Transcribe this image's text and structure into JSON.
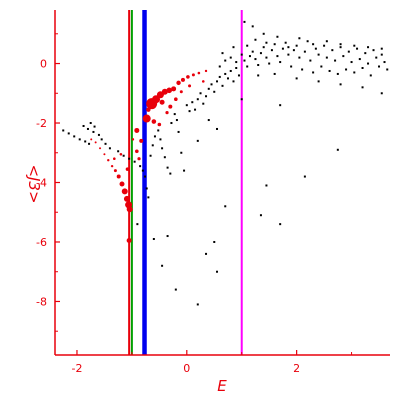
{
  "chart_data": {
    "type": "scatter",
    "xlabel": "E",
    "ylabel": "<J3>",
    "xlim": [
      -2.4,
      3.7
    ],
    "ylim": [
      -9.8,
      1.8
    ],
    "x_ticks": [
      -2,
      0,
      2
    ],
    "x_tick_labels": [
      "-2",
      "0",
      "2"
    ],
    "x_minor_ticks": [
      -1,
      1,
      3
    ],
    "y_ticks": [
      0,
      -2,
      -4,
      -6,
      -8
    ],
    "y_tick_labels": [
      "0",
      "-2",
      "-4",
      "-6",
      "-8"
    ],
    "y_minor_ticks": [
      1,
      -1,
      -3,
      -5,
      -7,
      -9
    ],
    "grid": false,
    "axis_color": "#e8000b",
    "vertical_lines": [
      {
        "x": -1.05,
        "color": "#e8000b"
      },
      {
        "x": -1.0,
        "color": "#00a000"
      },
      {
        "x": -0.77,
        "color": "#0000ee"
      },
      {
        "x": 1.0,
        "color": "#ff00ff"
      }
    ],
    "red_points": {
      "color": "#e8000b",
      "points": [
        [
          -1.74,
          -2.55
        ],
        [
          -1.66,
          -2.65
        ],
        [
          -1.58,
          -2.85
        ],
        [
          -1.5,
          -3.05
        ],
        [
          -1.43,
          -3.25
        ],
        [
          -1.36,
          -3.45
        ],
        [
          -1.3,
          -3.6
        ],
        [
          -1.24,
          -3.8
        ],
        [
          -1.18,
          -4.05
        ],
        [
          -1.13,
          -4.3
        ],
        [
          -1.09,
          -4.55
        ],
        [
          -1.06,
          -4.75
        ],
        [
          -1.04,
          -4.9
        ],
        [
          -1.05,
          -5.95
        ],
        [
          -1.2,
          -3.05
        ],
        [
          -1.32,
          -3.2
        ],
        [
          -1.08,
          -3.55
        ],
        [
          -0.83,
          -2.6
        ],
        [
          -0.91,
          -2.95
        ],
        [
          -0.87,
          -3.2
        ],
        [
          -0.98,
          -2.55
        ],
        [
          -0.91,
          -2.25
        ],
        [
          -0.73,
          -1.85
        ],
        [
          -0.64,
          -1.35
        ],
        [
          -0.56,
          -1.2
        ],
        [
          -0.48,
          -1.05
        ],
        [
          -0.4,
          -0.95
        ],
        [
          -0.32,
          -0.9
        ],
        [
          -0.24,
          -0.85
        ],
        [
          -0.15,
          -0.65
        ],
        [
          -0.07,
          -0.55
        ],
        [
          0.02,
          -0.45
        ],
        [
          0.12,
          -0.38
        ],
        [
          0.22,
          -0.32
        ],
        [
          0.35,
          -0.25
        ],
        [
          -0.45,
          -1.3
        ],
        [
          -0.3,
          -1.45
        ],
        [
          -0.2,
          -1.2
        ],
        [
          -0.6,
          -1.95
        ],
        [
          -0.5,
          -2.05
        ],
        [
          0.05,
          -0.75
        ],
        [
          -0.1,
          -0.95
        ],
        [
          0.3,
          -0.6
        ],
        [
          -0.7,
          -1.55
        ],
        [
          -0.36,
          -1.65
        ]
      ],
      "sizes": [
        1,
        1,
        1,
        1,
        1.2,
        1.2,
        1.5,
        2,
        2.5,
        3,
        3,
        3.5,
        3,
        2.5,
        1.3,
        1.3,
        1.8,
        2,
        1.8,
        1.6,
        1.2,
        2.5,
        4,
        5.5,
        4,
        3.5,
        3,
        2.8,
        2.5,
        2.2,
        2,
        1.8,
        1.5,
        1.3,
        1.2,
        2.5,
        2,
        1.8,
        2.3,
        1.8,
        1.5,
        1.5,
        1.3,
        2.2,
        1.6
      ]
    },
    "black_points": {
      "color": "#000000",
      "points": [
        [
          -2.25,
          -2.25
        ],
        [
          -2.15,
          -2.35
        ],
        [
          -2.05,
          -2.45
        ],
        [
          -1.95,
          -2.55
        ],
        [
          -1.85,
          -2.62
        ],
        [
          -1.78,
          -2.7
        ],
        [
          -1.88,
          -2.1
        ],
        [
          -1.8,
          -2.2
        ],
        [
          -1.7,
          -2.3
        ],
        [
          -1.6,
          -2.4
        ],
        [
          -1.55,
          -2.55
        ],
        [
          -1.48,
          -2.7
        ],
        [
          -1.4,
          -2.85
        ],
        [
          -1.75,
          -2.0
        ],
        [
          -1.68,
          -2.12
        ],
        [
          -1.25,
          -2.95
        ],
        [
          -1.15,
          -3.1
        ],
        [
          -1.05,
          -3.2
        ],
        [
          -0.95,
          -3.3
        ],
        [
          -0.85,
          -3.45
        ],
        [
          -0.8,
          -3.6
        ],
        [
          -0.76,
          -3.8
        ],
        [
          -0.73,
          -4.2
        ],
        [
          -0.7,
          -4.5
        ],
        [
          -0.66,
          -3.1
        ],
        [
          -0.62,
          -2.75
        ],
        [
          -0.58,
          -2.45
        ],
        [
          -0.52,
          -2.25
        ],
        [
          -0.48,
          -2.55
        ],
        [
          -0.45,
          -2.85
        ],
        [
          -0.4,
          -3.15
        ],
        [
          -0.35,
          -3.5
        ],
        [
          -0.3,
          -3.7
        ],
        [
          -0.28,
          -2.0
        ],
        [
          -0.22,
          -1.7
        ],
        [
          -0.18,
          -1.9
        ],
        [
          -0.15,
          -2.3
        ],
        [
          -0.1,
          -3.0
        ],
        [
          -0.05,
          -3.6
        ],
        [
          0.0,
          -1.4
        ],
        [
          0.05,
          -1.6
        ],
        [
          0.1,
          -1.3
        ],
        [
          0.15,
          -1.55
        ],
        [
          0.2,
          -1.2
        ],
        [
          0.25,
          -1.0
        ],
        [
          0.3,
          -1.35
        ],
        [
          0.35,
          -1.1
        ],
        [
          0.4,
          -0.85
        ],
        [
          0.45,
          -0.7
        ],
        [
          0.5,
          -0.95
        ],
        [
          0.55,
          -0.6
        ],
        [
          0.6,
          -0.45
        ],
        [
          0.65,
          -0.75
        ],
        [
          0.7,
          -0.35
        ],
        [
          0.75,
          -0.5
        ],
        [
          0.8,
          -0.25
        ],
        [
          0.85,
          -0.6
        ],
        [
          0.9,
          -0.15
        ],
        [
          0.95,
          -0.4
        ],
        [
          0.6,
          -0.1
        ],
        [
          0.7,
          0.1
        ],
        [
          0.8,
          0.2
        ],
        [
          0.9,
          0.05
        ],
        [
          1.0,
          0.3
        ],
        [
          1.05,
          0.1
        ],
        [
          1.1,
          -0.1
        ],
        [
          1.15,
          0.25
        ],
        [
          1.2,
          0.4
        ],
        [
          1.25,
          0.15
        ],
        [
          1.3,
          -0.05
        ],
        [
          1.35,
          0.35
        ],
        [
          1.4,
          0.55
        ],
        [
          1.45,
          0.2
        ],
        [
          1.5,
          0.0
        ],
        [
          1.55,
          0.45
        ],
        [
          1.6,
          0.65
        ],
        [
          1.65,
          0.25
        ],
        [
          1.7,
          0.05
        ],
        [
          1.75,
          0.5
        ],
        [
          1.8,
          0.7
        ],
        [
          1.85,
          0.3
        ],
        [
          1.9,
          -0.1
        ],
        [
          1.95,
          0.45
        ],
        [
          2.0,
          0.6
        ],
        [
          2.05,
          0.2
        ],
        [
          2.1,
          -0.2
        ],
        [
          2.15,
          0.4
        ],
        [
          2.2,
          0.75
        ],
        [
          2.25,
          0.1
        ],
        [
          2.3,
          -0.3
        ],
        [
          2.35,
          0.5
        ],
        [
          2.4,
          0.3
        ],
        [
          2.45,
          -0.1
        ],
        [
          2.5,
          0.6
        ],
        [
          2.55,
          0.2
        ],
        [
          2.6,
          -0.25
        ],
        [
          2.65,
          0.45
        ],
        [
          2.7,
          0.1
        ],
        [
          2.75,
          -0.35
        ],
        [
          2.8,
          0.55
        ],
        [
          2.85,
          0.25
        ],
        [
          2.9,
          -0.2
        ],
        [
          2.95,
          0.4
        ],
        [
          3.0,
          0.05
        ],
        [
          3.05,
          -0.3
        ],
        [
          3.1,
          0.5
        ],
        [
          3.15,
          0.15
        ],
        [
          3.2,
          -0.15
        ],
        [
          3.25,
          0.35
        ],
        [
          3.3,
          0.0
        ],
        [
          3.35,
          -0.4
        ],
        [
          3.4,
          0.45
        ],
        [
          3.45,
          0.2
        ],
        [
          3.5,
          -0.1
        ],
        [
          3.55,
          0.3
        ],
        [
          3.6,
          0.05
        ],
        [
          3.65,
          -0.2
        ],
        [
          1.1,
          0.6
        ],
        [
          1.25,
          0.8
        ],
        [
          1.45,
          0.7
        ],
        [
          1.65,
          0.9
        ],
        [
          1.85,
          0.55
        ],
        [
          2.05,
          0.85
        ],
        [
          2.3,
          0.65
        ],
        [
          2.55,
          0.75
        ],
        [
          2.8,
          0.65
        ],
        [
          3.05,
          0.6
        ],
        [
          3.3,
          0.55
        ],
        [
          3.55,
          0.5
        ],
        [
          1.05,
          1.4
        ],
        [
          1.2,
          1.25
        ],
        [
          1.4,
          1.0
        ],
        [
          0.85,
          0.55
        ],
        [
          0.65,
          0.35
        ],
        [
          1.3,
          -0.4
        ],
        [
          1.6,
          -0.35
        ],
        [
          2.0,
          -0.5
        ],
        [
          2.4,
          -0.6
        ],
        [
          2.8,
          -0.7
        ],
        [
          3.2,
          -0.8
        ],
        [
          3.55,
          -1.0
        ],
        [
          1.0,
          -1.2
        ],
        [
          1.7,
          -1.4
        ],
        [
          0.4,
          -1.9
        ],
        [
          0.2,
          -2.6
        ],
        [
          0.55,
          -2.2
        ],
        [
          1.45,
          -4.1
        ],
        [
          2.15,
          -3.8
        ],
        [
          2.75,
          -2.9
        ],
        [
          1.7,
          -5.4
        ],
        [
          1.35,
          -5.1
        ],
        [
          0.7,
          -4.8
        ],
        [
          0.5,
          -6.0
        ],
        [
          0.35,
          -6.4
        ],
        [
          0.2,
          -8.1
        ],
        [
          -0.35,
          -5.8
        ],
        [
          0.55,
          -7.0
        ],
        [
          -0.2,
          -7.6
        ],
        [
          -0.45,
          -6.8
        ],
        [
          -0.6,
          -5.9
        ],
        [
          -0.9,
          -5.4
        ]
      ]
    }
  }
}
